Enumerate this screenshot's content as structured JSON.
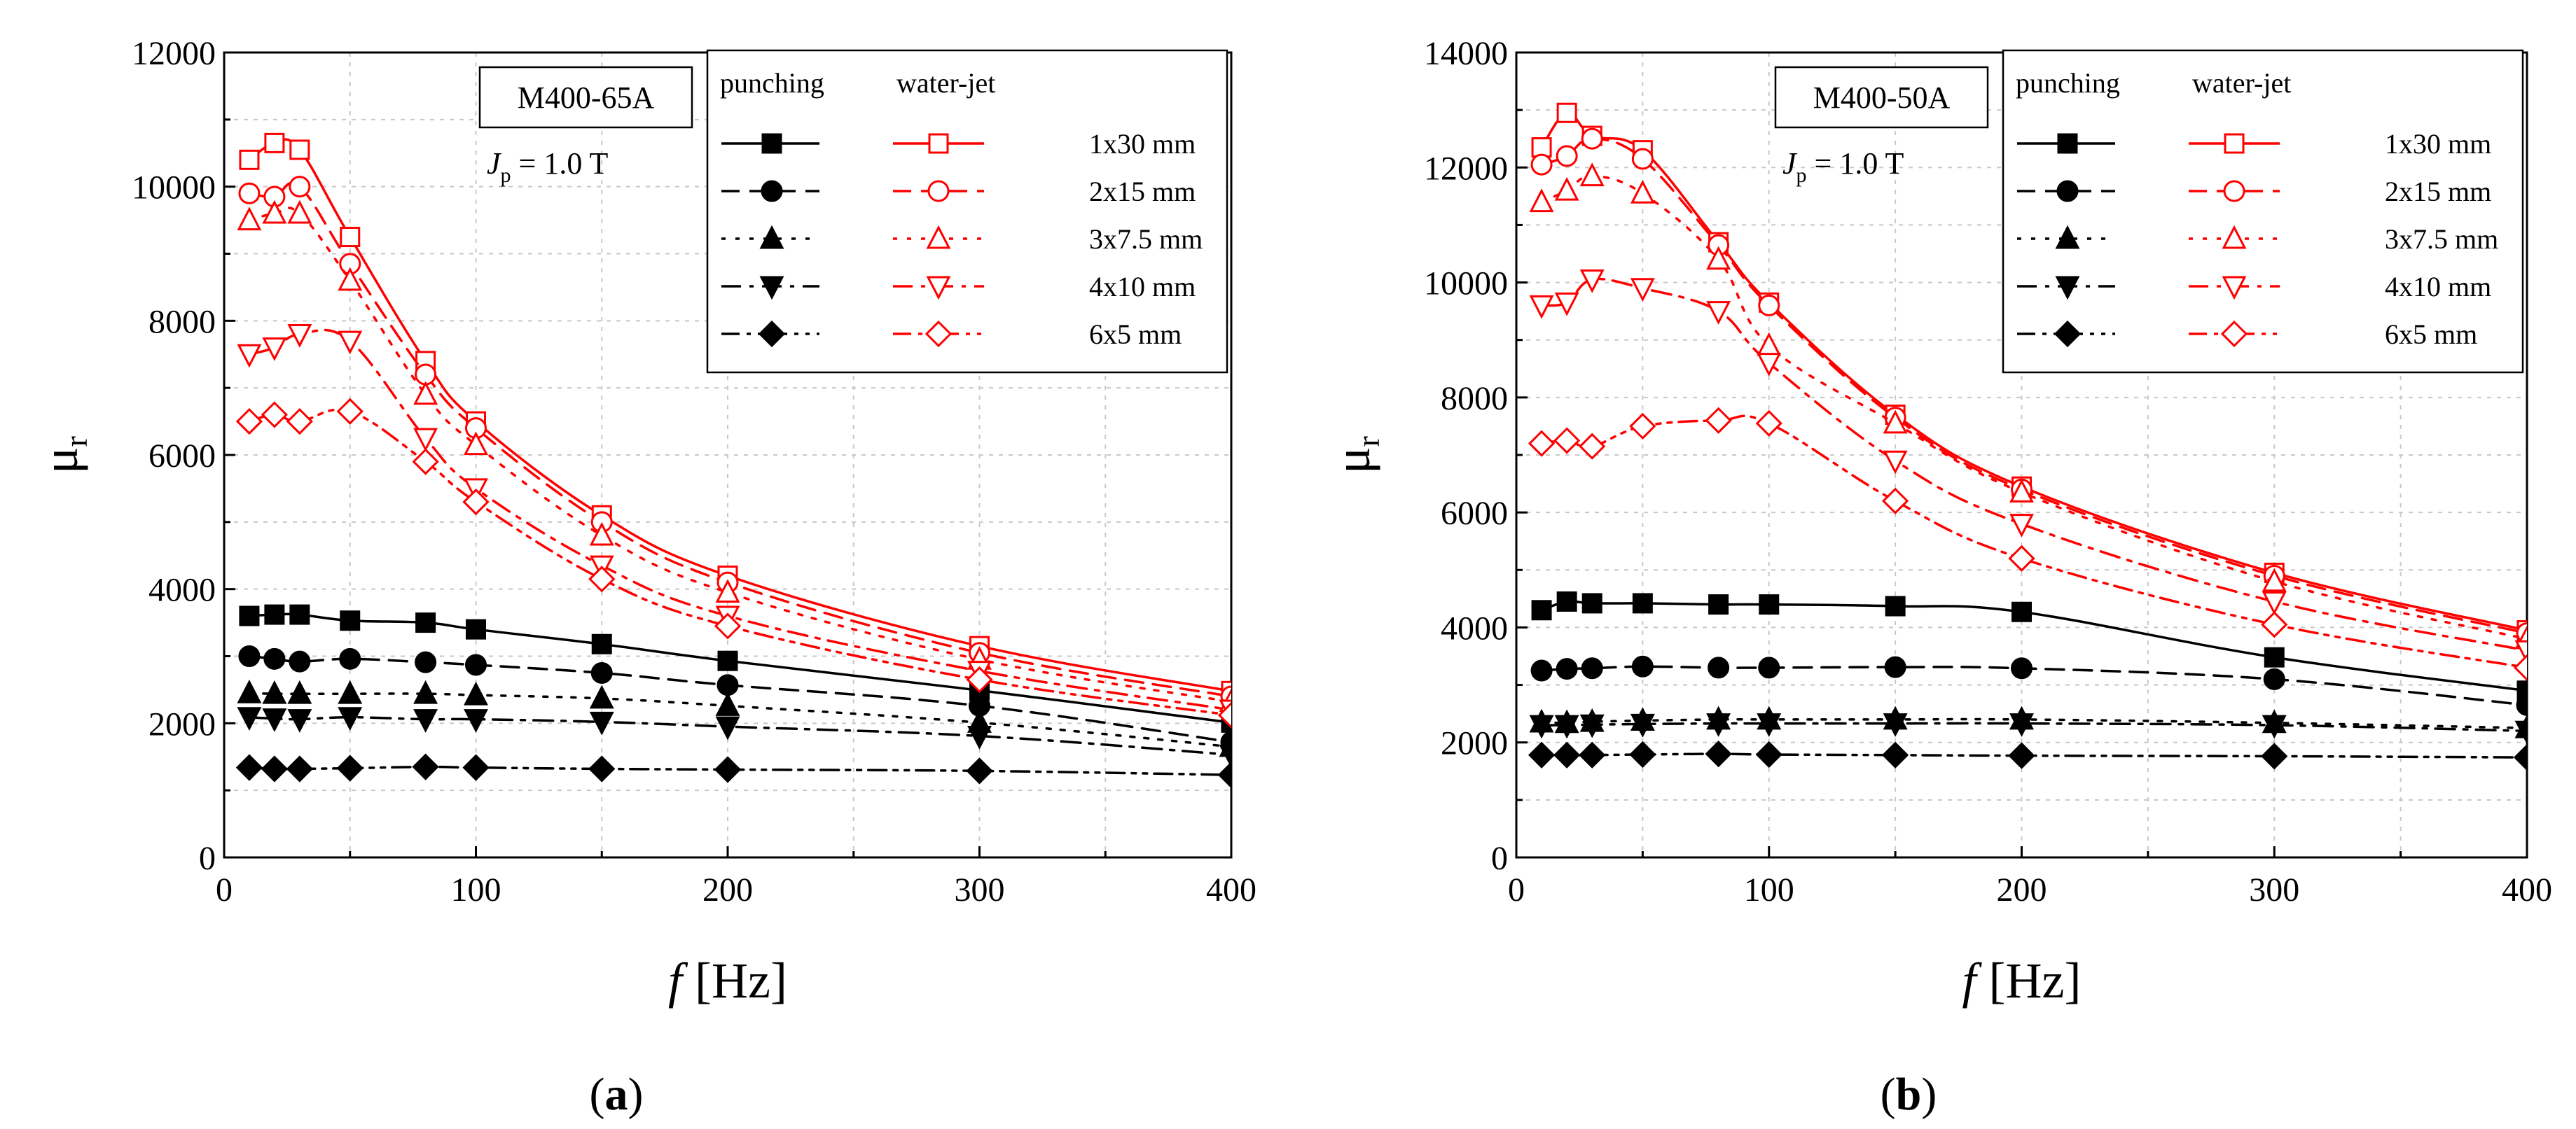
{
  "chart_data": [
    {
      "type": "line",
      "panel_label": "(a)",
      "panel_letter": "a",
      "material_label": "M400-65A",
      "jp_label": {
        "sym": "J",
        "sub": "p",
        "rest": " = 1.0 T"
      },
      "xlabel": {
        "sym": "f",
        "rest": " [Hz]"
      },
      "ylabel": {
        "sym": "μ",
        "sub": "r"
      },
      "xlim": [
        0,
        400
      ],
      "ylim": [
        0,
        12000
      ],
      "xticks": [
        0,
        100,
        200,
        300,
        400
      ],
      "yticks": [
        0,
        2000,
        4000,
        6000,
        8000,
        10000,
        12000
      ],
      "grid": true,
      "legend": {
        "placement": "top-right",
        "header_left": "punching",
        "header_right": "water-jet",
        "labels": [
          "1x30 mm",
          "2x15 mm",
          "3x7.5 mm",
          "4x10 mm",
          "6x5 mm"
        ]
      },
      "x": [
        10,
        20,
        30,
        50,
        80,
        100,
        150,
        200,
        300,
        400
      ],
      "series": [
        {
          "name": "punching 1x30 mm",
          "method": "punching",
          "values": [
            3600,
            3620,
            3620,
            3530,
            3500,
            3400,
            3180,
            2930,
            2490,
            2010
          ]
        },
        {
          "name": "punching 2x15 mm",
          "method": "punching",
          "values": [
            3000,
            2960,
            2920,
            2960,
            2910,
            2870,
            2750,
            2570,
            2260,
            1720
          ]
        },
        {
          "name": "punching 3x7.5 mm",
          "method": "punching",
          "values": [
            2450,
            2440,
            2440,
            2440,
            2440,
            2420,
            2370,
            2260,
            2010,
            1650
          ]
        },
        {
          "name": "punching 4x10 mm",
          "method": "punching",
          "values": [
            2090,
            2070,
            2060,
            2090,
            2060,
            2060,
            2020,
            1950,
            1810,
            1530
          ]
        },
        {
          "name": "punching 6x5 mm",
          "method": "punching",
          "values": [
            1340,
            1320,
            1320,
            1330,
            1350,
            1340,
            1320,
            1310,
            1290,
            1230
          ]
        },
        {
          "name": "water-jet 1x30 mm",
          "method": "water-jet",
          "values": [
            10400,
            10650,
            10550,
            9250,
            7400,
            6500,
            5100,
            4200,
            3150,
            2480
          ]
        },
        {
          "name": "water-jet 2x15 mm",
          "method": "water-jet",
          "values": [
            9900,
            9850,
            10000,
            8850,
            7200,
            6400,
            5000,
            4100,
            3050,
            2400
          ]
        },
        {
          "name": "water-jet 3x7.5 mm",
          "method": "water-jet",
          "values": [
            9500,
            9600,
            9600,
            8600,
            6900,
            6150,
            4800,
            3950,
            2950,
            2320
          ]
        },
        {
          "name": "water-jet 4x10 mm",
          "method": "water-jet",
          "values": [
            7500,
            7600,
            7800,
            7700,
            6250,
            5500,
            4350,
            3600,
            2780,
            2200
          ]
        },
        {
          "name": "water-jet 6x5 mm",
          "method": "water-jet",
          "values": [
            6500,
            6600,
            6500,
            6650,
            5900,
            5300,
            4150,
            3450,
            2650,
            2120
          ]
        }
      ]
    },
    {
      "type": "line",
      "panel_label": "(b)",
      "panel_letter": "b",
      "material_label": "M400-50A",
      "jp_label": {
        "sym": "J",
        "sub": "p",
        "rest": " = 1.0 T"
      },
      "xlabel": {
        "sym": "f",
        "rest": " [Hz]"
      },
      "ylabel": {
        "sym": "μ",
        "sub": "r"
      },
      "xlim": [
        0,
        400
      ],
      "ylim": [
        0,
        14000
      ],
      "xticks": [
        0,
        100,
        200,
        300,
        400
      ],
      "yticks": [
        0,
        2000,
        4000,
        6000,
        8000,
        10000,
        12000,
        14000
      ],
      "grid": true,
      "legend": {
        "placement": "top-right",
        "header_left": "punching",
        "header_right": "water-jet",
        "labels": [
          "1x30 mm",
          "2x15 mm",
          "3x7.5 mm",
          "4x10 mm",
          "6x5 mm"
        ]
      },
      "x": [
        10,
        20,
        30,
        50,
        80,
        100,
        150,
        200,
        300,
        400
      ],
      "series": [
        {
          "name": "punching 1x30 mm",
          "method": "punching",
          "values": [
            4300,
            4450,
            4420,
            4420,
            4400,
            4400,
            4370,
            4270,
            3480,
            2900
          ]
        },
        {
          "name": "punching 2x15 mm",
          "method": "punching",
          "values": [
            3250,
            3280,
            3290,
            3320,
            3300,
            3300,
            3310,
            3290,
            3100,
            2650
          ]
        },
        {
          "name": "punching 3x7.5 mm",
          "method": "punching",
          "values": [
            2350,
            2340,
            2360,
            2380,
            2400,
            2400,
            2400,
            2400,
            2340,
            2250
          ]
        },
        {
          "name": "punching 4x10 mm",
          "method": "punching",
          "values": [
            2300,
            2300,
            2310,
            2320,
            2330,
            2330,
            2330,
            2330,
            2300,
            2200
          ]
        },
        {
          "name": "punching 6x5 mm",
          "method": "punching",
          "values": [
            1780,
            1780,
            1780,
            1790,
            1800,
            1790,
            1780,
            1770,
            1760,
            1740
          ]
        },
        {
          "name": "water-jet 1x30 mm",
          "method": "water-jet",
          "values": [
            12350,
            12950,
            12550,
            12300,
            10700,
            9650,
            7700,
            6450,
            4950,
            3950
          ]
        },
        {
          "name": "water-jet 2x15 mm",
          "method": "water-jet",
          "values": [
            12050,
            12200,
            12500,
            12150,
            10650,
            9600,
            7650,
            6400,
            4900,
            3900
          ]
        },
        {
          "name": "water-jet 3x7.5 mm",
          "method": "water-jet",
          "values": [
            11400,
            11600,
            11850,
            11550,
            10400,
            8900,
            7550,
            6350,
            4800,
            3800
          ]
        },
        {
          "name": "water-jet 4x10 mm",
          "method": "water-jet",
          "values": [
            9600,
            9650,
            10050,
            9900,
            9500,
            8600,
            6900,
            5800,
            4450,
            3600
          ]
        },
        {
          "name": "water-jet 6x5 mm",
          "method": "water-jet",
          "values": [
            7200,
            7250,
            7150,
            7500,
            7600,
            7550,
            6200,
            5200,
            4050,
            3300
          ]
        }
      ]
    }
  ]
}
